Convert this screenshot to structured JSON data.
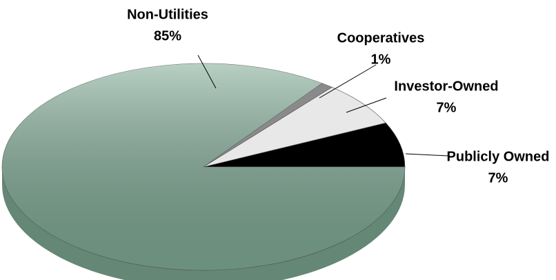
{
  "chart_data": {
    "type": "pie",
    "categories": [
      "Publicly Owned",
      "Investor-Owned",
      "Cooperatives",
      "Non-Utilities"
    ],
    "values": [
      7,
      7,
      1,
      85
    ],
    "value_labels": [
      "7%",
      "7%",
      "1%",
      "85%"
    ],
    "colors": [
      "#000000",
      "#e8e8e8",
      "#8a8a8a",
      "#7ea994"
    ]
  }
}
